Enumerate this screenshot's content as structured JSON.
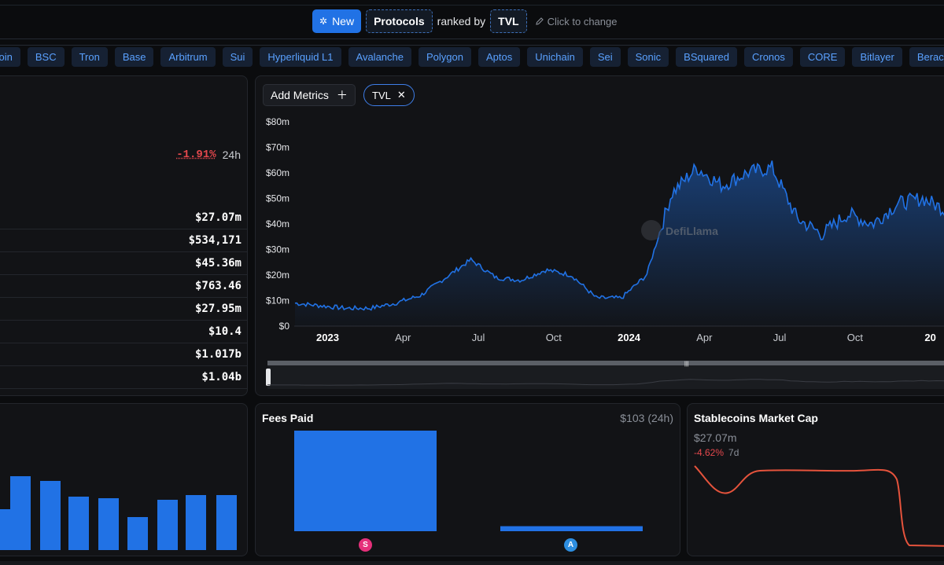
{
  "header": {
    "new_label": "New",
    "protocols_label": "Protocols",
    "ranked_by_label": "ranked by",
    "metric_label": "TVL",
    "click_hint": "Click to change"
  },
  "chains": [
    "coin",
    "BSC",
    "Tron",
    "Base",
    "Arbitrum",
    "Sui",
    "Hyperliquid L1",
    "Avalanche",
    "Polygon",
    "Aptos",
    "Unichain",
    "Sei",
    "Sonic",
    "BSquared",
    "Cronos",
    "CORE",
    "Bitlayer",
    "Berachain"
  ],
  "stats": {
    "change_24h": "-1.91%",
    "change_24h_label": "24h",
    "values": [
      "$27.07m",
      "$534,171",
      "$45.36m",
      "$763.46",
      "$27.95m",
      "$10.4",
      "$1.017b",
      "$1.04b"
    ]
  },
  "tvl_chart": {
    "add_metrics_label": "Add Metrics",
    "pill_label": "TVL",
    "watermark": "DefiLlama",
    "y_ticks": [
      "$80m",
      "$70m",
      "$60m",
      "$50m",
      "$40m",
      "$30m",
      "$20m",
      "$10m",
      "$0"
    ],
    "x_ticks": [
      "2023",
      "Apr",
      "Jul",
      "Oct",
      "2024",
      "Apr",
      "Jul",
      "Oct",
      "20"
    ],
    "line_color": "#2172e5"
  },
  "chart_data": {
    "type": "area",
    "title": "",
    "ylabel": "",
    "xlabel": "",
    "ylim": [
      0,
      80
    ],
    "y_unit": "$m",
    "x": [
      "2022-11",
      "2022-12",
      "2023-01",
      "2023-02",
      "2023-03",
      "2023-04",
      "2023-05",
      "2023-06",
      "2023-07",
      "2023-08",
      "2023-09",
      "2023-10",
      "2023-11",
      "2023-12",
      "2024-01",
      "2024-02",
      "2024-03",
      "2024-04",
      "2024-05",
      "2024-06",
      "2024-07",
      "2024-08",
      "2024-09",
      "2024-10",
      "2024-11",
      "2024-12",
      "2025-01"
    ],
    "series": [
      {
        "values": [
          9,
          8,
          7,
          7,
          9,
          12,
          19,
          26,
          19,
          18,
          22,
          20,
          11,
          11,
          20,
          52,
          62,
          55,
          60,
          62,
          42,
          36,
          44,
          40,
          48,
          50,
          45
        ]
      }
    ]
  },
  "fees": {
    "title": "Fees Paid",
    "amount": "$103 (24h)",
    "bar_values": [
      100,
      5
    ],
    "bar_color": "#2172e5",
    "icons": [
      {
        "letter": "S",
        "color": "#e5307a"
      },
      {
        "letter": "A",
        "color": "#2d8ee0"
      }
    ]
  },
  "stablecoins": {
    "title": "Stablecoins Market Cap",
    "market_cap": "$27.07m",
    "change": "-4.62%",
    "change_period": "7d",
    "line_color": "#e5533c"
  },
  "bars_panel": {
    "bar_values": [
      52,
      94,
      88,
      68,
      66,
      42,
      64,
      70,
      70
    ],
    "bar_color": "#2172e5"
  }
}
